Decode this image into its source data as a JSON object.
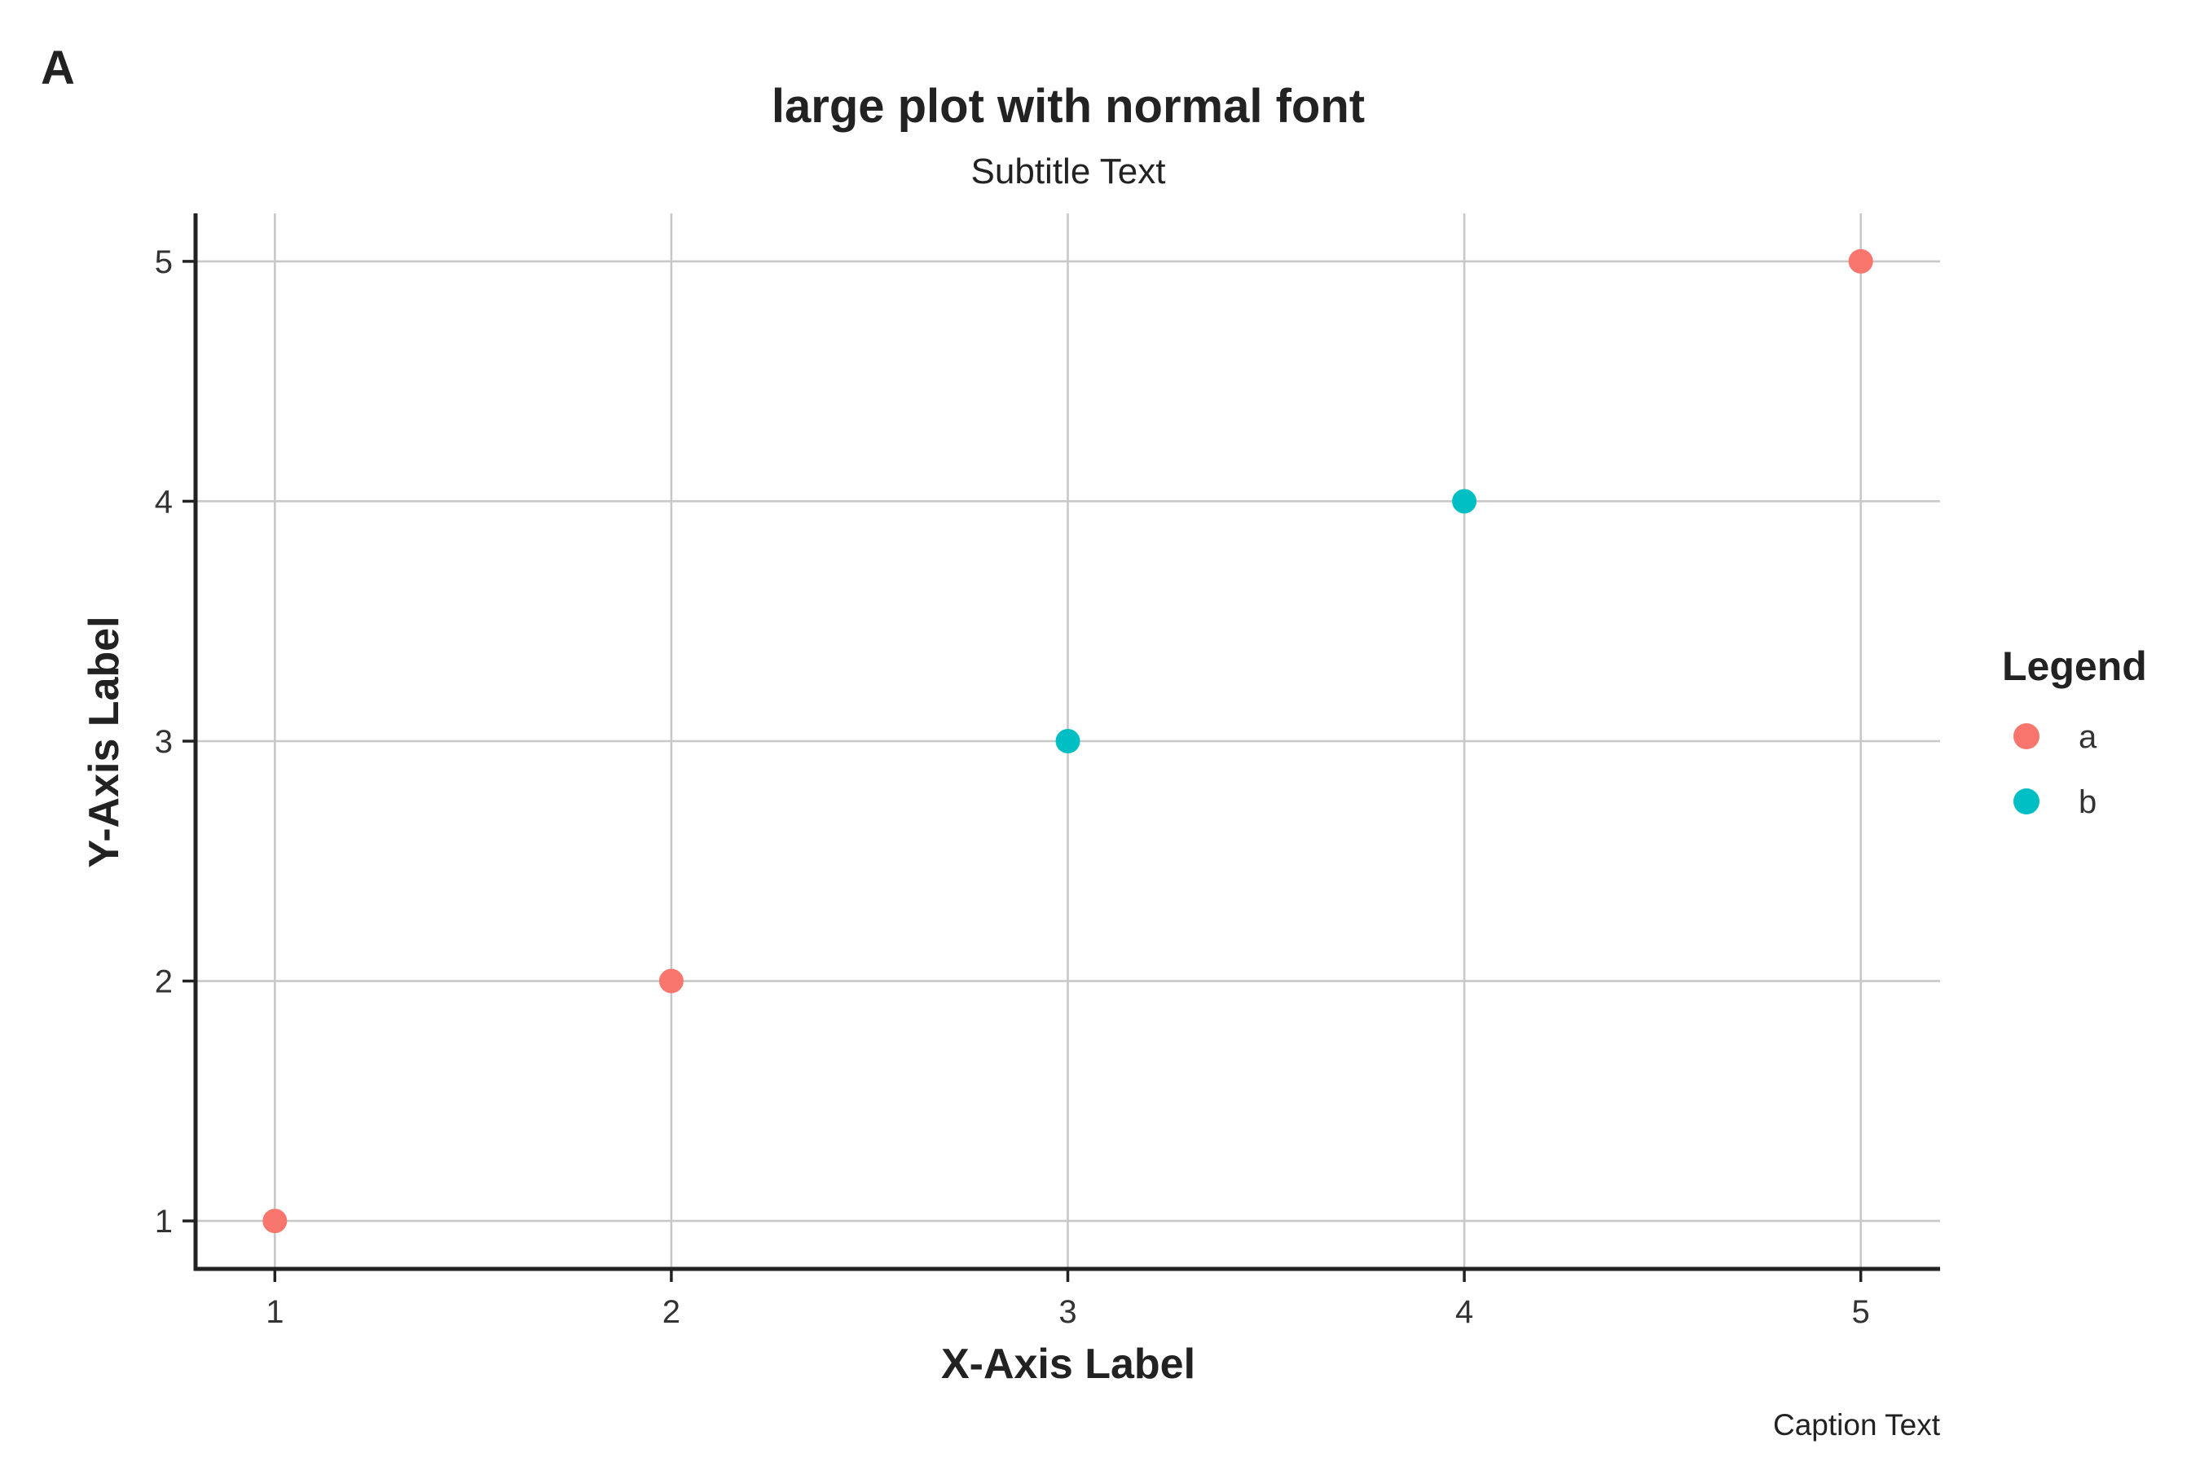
{
  "chart_data": {
    "type": "scatter",
    "tag": "A",
    "title": "large plot with normal font",
    "subtitle": "Subtitle Text",
    "xlabel": "X-Axis Label",
    "ylabel": "Y-Axis Label",
    "caption": "Caption Text",
    "xlim": [
      0.8,
      5.2
    ],
    "ylim": [
      0.8,
      5.2
    ],
    "x_ticks": [
      1,
      2,
      3,
      4,
      5
    ],
    "y_ticks": [
      1,
      2,
      3,
      4,
      5
    ],
    "grid": true,
    "legend": {
      "title": "Legend",
      "placement": "right",
      "entries": [
        {
          "label": "a",
          "color": "#F8766D"
        },
        {
          "label": "b",
          "color": "#00BFC4"
        }
      ]
    },
    "series": [
      {
        "name": "a",
        "color": "#F8766D",
        "points": [
          {
            "x": 1,
            "y": 1
          },
          {
            "x": 2,
            "y": 2
          },
          {
            "x": 5,
            "y": 5
          }
        ]
      },
      {
        "name": "b",
        "color": "#00BFC4",
        "points": [
          {
            "x": 3,
            "y": 3
          },
          {
            "x": 4,
            "y": 4
          }
        ]
      }
    ]
  }
}
